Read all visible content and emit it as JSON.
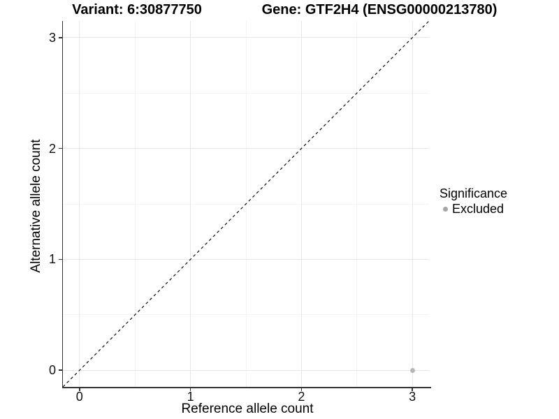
{
  "chart_data": {
    "type": "scatter",
    "title_left": "Variant: 6:30877750",
    "title_right": "Gene: GTF2H4 (ENSG00000213780)",
    "xlabel": "Reference allele count",
    "ylabel": "Alternative allele count",
    "xlim": [
      -0.15,
      3.15
    ],
    "ylim": [
      -0.15,
      3.15
    ],
    "x_ticks": [
      0,
      1,
      2,
      3
    ],
    "y_ticks": [
      0,
      1,
      2,
      3
    ],
    "x_minor_ticks": [
      0.5,
      1.5,
      2.5
    ],
    "y_minor_ticks": [
      0.5,
      1.5,
      2.5
    ],
    "grid": "major and minor gridlines on white background, axis lines left and bottom only",
    "identity_line": {
      "from": [
        -0.15,
        -0.15
      ],
      "to": [
        3.15,
        3.15
      ],
      "style": "dashed",
      "color": "#000000"
    },
    "series": [
      {
        "name": "Excluded",
        "color": "#b7b7b7",
        "points": [
          [
            3,
            0
          ]
        ]
      }
    ],
    "legend": {
      "title": "Significance",
      "position": "right",
      "items": [
        {
          "label": "Excluded",
          "color": "#a6a6a6"
        }
      ]
    }
  },
  "colors": {
    "background": "#ffffff",
    "axis_line": "#333333",
    "grid_major": "#e7e7e7",
    "grid_minor": "#f3f3f3",
    "text": "#000000",
    "point": "#b7b7b7",
    "legend_dot": "#a6a6a6"
  }
}
